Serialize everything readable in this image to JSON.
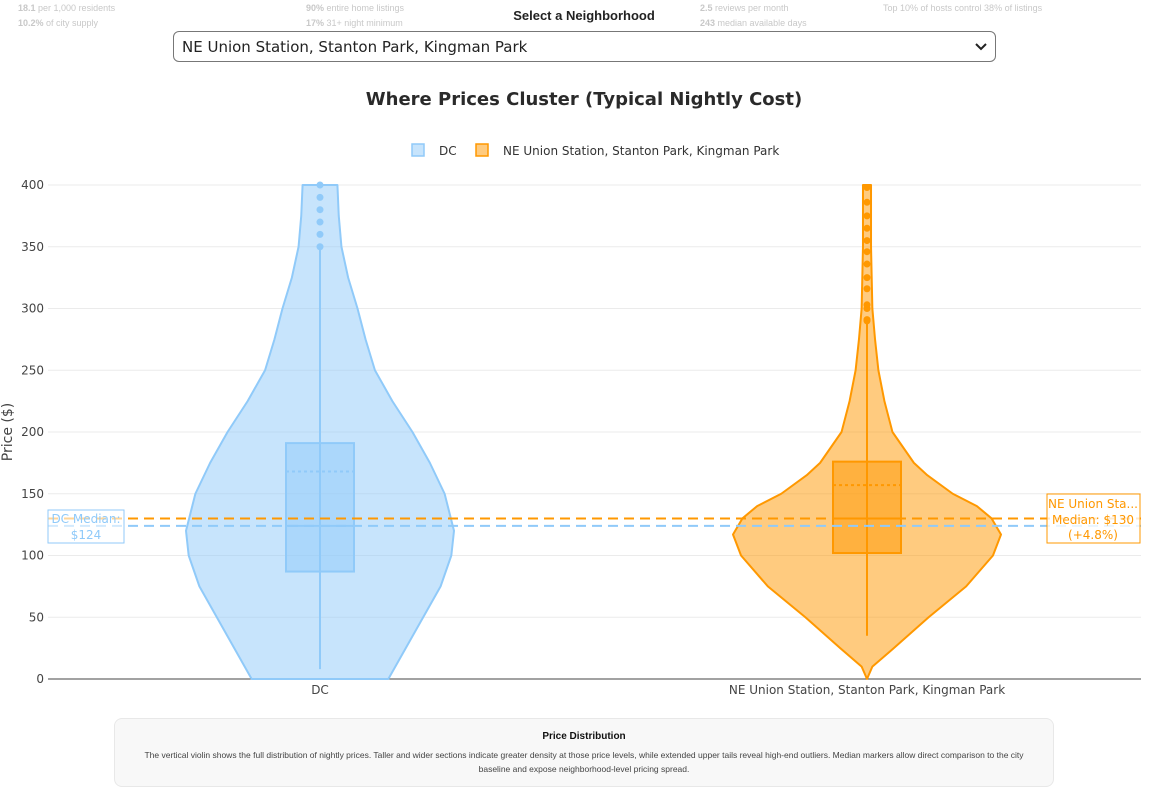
{
  "stats_row1": [
    {
      "strong": "18.1",
      "rest": " per 1,000 residents"
    },
    {
      "strong": "90%",
      "rest": " entire home listings"
    },
    {
      "strong": "2.5",
      "rest": " reviews per month"
    },
    {
      "strong": "Top 10% of hosts control 38%",
      "rest": " of listings"
    }
  ],
  "stats_row2": [
    {
      "strong": "10.2%",
      "rest": " of city supply"
    },
    {
      "strong": "17%",
      "rest": " 31+ night minimum"
    },
    {
      "strong": "243",
      "rest": " median available days"
    }
  ],
  "selector": {
    "label": "Select a Neighborhood",
    "value": "NE Union Station, Stanton Park, Kingman Park"
  },
  "chart_data": {
    "type": "violin",
    "title": "Where Prices Cluster (Typical Nightly Cost)",
    "ylabel": "Price ($)",
    "ylim": [
      0,
      400
    ],
    "yticks": [
      0,
      50,
      100,
      150,
      200,
      250,
      300,
      350,
      400
    ],
    "grid": true,
    "legend_position": "top-center",
    "categories": [
      "DC",
      "NE Union Station, Stanton Park, Kingman Park"
    ],
    "series": [
      {
        "name": "DC",
        "color": "#90caf9",
        "box": {
          "q1": 87,
          "median": 124,
          "q3": 191,
          "mean": 168,
          "lower_whisker": 8,
          "upper_whisker": 348
        },
        "outliers": [
          350,
          360,
          370,
          380,
          390,
          400
        ],
        "density": [
          [
            0,
            0.51
          ],
          [
            25,
            0.64
          ],
          [
            50,
            0.77
          ],
          [
            75,
            0.9
          ],
          [
            100,
            0.98
          ],
          [
            120,
            1.0
          ],
          [
            150,
            0.93
          ],
          [
            175,
            0.82
          ],
          [
            200,
            0.69
          ],
          [
            225,
            0.54
          ],
          [
            250,
            0.41
          ],
          [
            275,
            0.34
          ],
          [
            300,
            0.28
          ],
          [
            325,
            0.21
          ],
          [
            350,
            0.16
          ],
          [
            375,
            0.14
          ],
          [
            400,
            0.13
          ]
        ]
      },
      {
        "name": "NE Union Station, Stanton Park, Kingman Park",
        "color": "#ff9800",
        "box": {
          "q1": 102,
          "median": 130,
          "q3": 176,
          "mean": 157,
          "lower_whisker": 35,
          "upper_whisker": 289
        },
        "outliers": [
          290,
          291,
          300,
          303,
          316,
          325,
          336,
          346,
          355,
          365,
          375,
          386,
          398
        ],
        "density": [
          [
            0,
            0.0
          ],
          [
            10,
            0.04
          ],
          [
            25,
            0.2
          ],
          [
            50,
            0.46
          ],
          [
            75,
            0.74
          ],
          [
            100,
            0.94
          ],
          [
            117,
            1.0
          ],
          [
            130,
            0.93
          ],
          [
            140,
            0.82
          ],
          [
            150,
            0.64
          ],
          [
            165,
            0.45
          ],
          [
            175,
            0.35
          ],
          [
            200,
            0.19
          ],
          [
            225,
            0.13
          ],
          [
            250,
            0.085
          ],
          [
            275,
            0.06
          ],
          [
            300,
            0.04
          ],
          [
            350,
            0.03
          ],
          [
            400,
            0.03
          ]
        ]
      }
    ],
    "reference_lines": [
      {
        "label": "DC Median:",
        "value_label": "$124",
        "value": 124,
        "color": "#90caf9"
      },
      {
        "label": "NE Union Sta...",
        "value_label": "Median: $130",
        "delta": "(+4.8%)",
        "value": 130,
        "color": "#ff9800"
      }
    ]
  },
  "description": {
    "title": "Price Distribution",
    "text": "The vertical violin shows the full distribution of nightly prices. Taller and wider sections indicate greater density at those price levels, while extended upper tails reveal high-end outliers. Median markers allow direct comparison to the city baseline and expose neighborhood-level pricing spread."
  }
}
